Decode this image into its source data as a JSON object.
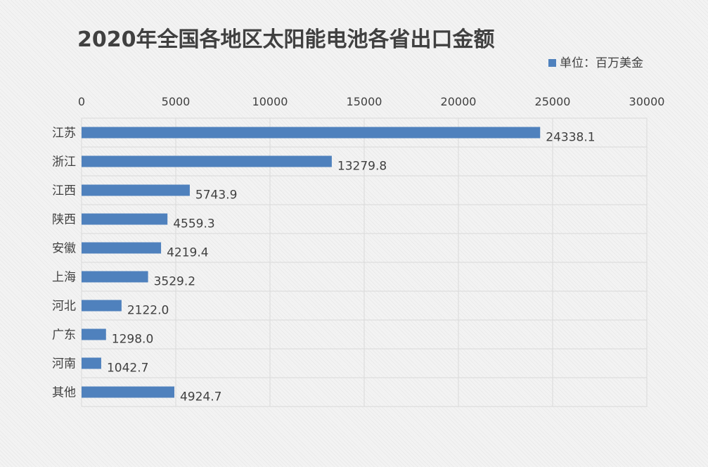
{
  "chart_data": {
    "type": "bar",
    "orientation": "horizontal",
    "title": "2020年全国各地区太阳能电池各省出口金额",
    "categories": [
      "江苏",
      "浙江",
      "江西",
      "陕西",
      "安徽",
      "上海",
      "河北",
      "广东",
      "河南",
      "其他"
    ],
    "series": [
      {
        "name": "单位：百万美金",
        "values": [
          24338.1,
          13279.8,
          5743.9,
          4559.3,
          4219.4,
          3529.2,
          2122.0,
          1298.0,
          1042.7,
          4924.7
        ],
        "labels": [
          "24338.1",
          "13279.8",
          "5743.9",
          "4559.3",
          "4219.4",
          "3529.2",
          "2122.0",
          "1298.0",
          "1042.7",
          "4924.7"
        ],
        "color": "#4f81bd"
      }
    ],
    "xlim": [
      0,
      30000
    ],
    "xticks": [
      "0",
      "5000",
      "10000",
      "15000",
      "20000",
      "25000",
      "30000"
    ],
    "xaxis_position": "top",
    "grid": true,
    "legend_position": "top-right"
  }
}
